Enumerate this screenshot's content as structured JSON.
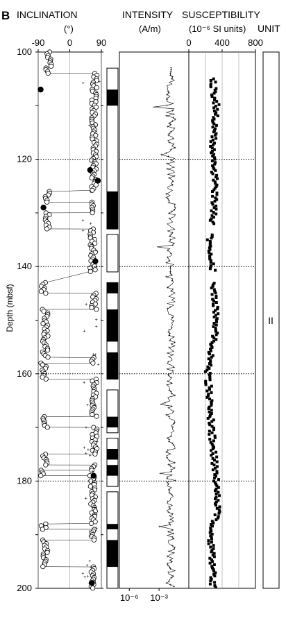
{
  "chart_data": {
    "type": "scatter",
    "panel_label": "B",
    "depth_axis": {
      "label": "Depth (mbsf)",
      "range": [
        100,
        200
      ],
      "ticks": [
        "100",
        "120",
        "140",
        "160",
        "180",
        "200"
      ],
      "dotted_lines": [
        120,
        140,
        160,
        180
      ]
    },
    "inclination": {
      "title": "INCLINATION",
      "unit": "(°)",
      "range": [
        -90,
        90
      ],
      "ticks": [
        "-90",
        "0",
        "90"
      ],
      "segments": [
        {
          "from": 100,
          "to": 104,
          "value": -60
        },
        {
          "from": 104,
          "to": 126,
          "value": 70
        },
        {
          "from": 126,
          "to": 128,
          "value": -65
        },
        {
          "from": 128,
          "to": 130,
          "value": 60
        },
        {
          "from": 130,
          "to": 133,
          "value": -65
        },
        {
          "from": 133,
          "to": 141,
          "value": 65
        },
        {
          "from": 143,
          "to": 145,
          "value": -75
        },
        {
          "from": 145,
          "to": 148,
          "value": 70
        },
        {
          "from": 148,
          "to": 157,
          "value": -70
        },
        {
          "from": 157,
          "to": 158,
          "value": 65
        },
        {
          "from": 158,
          "to": 161,
          "value": -75
        },
        {
          "from": 161,
          "to": 168,
          "value": 70
        },
        {
          "from": 168,
          "to": 170,
          "value": -70
        },
        {
          "from": 170,
          "to": 175,
          "value": 70
        },
        {
          "from": 175,
          "to": 177,
          "value": -70
        },
        {
          "from": 177,
          "to": 178,
          "value": 65
        },
        {
          "from": 178,
          "to": 179,
          "value": -75
        },
        {
          "from": 179,
          "to": 188,
          "value": 65
        },
        {
          "from": 188,
          "to": 189,
          "value": -75
        },
        {
          "from": 189,
          "to": 191,
          "value": 65
        },
        {
          "from": 191,
          "to": 196,
          "value": -70
        },
        {
          "from": 196,
          "to": 200,
          "value": 65
        }
      ],
      "filled_points": [
        [
          107,
          -83
        ],
        [
          122,
          58
        ],
        [
          124,
          80
        ],
        [
          129,
          -75
        ],
        [
          139,
          73
        ],
        [
          179,
          68
        ],
        [
          199,
          63
        ]
      ]
    },
    "polarity_column": {
      "intervals": [
        {
          "from": 103,
          "to": 133,
          "black": [
            [
              107,
              110
            ],
            [
              126,
              133
            ]
          ]
        },
        {
          "from": 134,
          "to": 141,
          "black": []
        },
        {
          "from": 143,
          "to": 161,
          "black": [
            [
              143,
              145
            ],
            [
              148,
              154
            ],
            [
              156,
              161
            ]
          ]
        },
        {
          "from": 163,
          "to": 171,
          "black": [
            [
              168,
              170
            ]
          ]
        },
        {
          "from": 172,
          "to": 181,
          "black": [
            [
              174,
              176
            ],
            [
              177,
              179
            ]
          ]
        },
        {
          "from": 182,
          "to": 200,
          "black": [
            [
              188,
              189
            ],
            [
              191,
              196
            ]
          ]
        }
      ]
    },
    "intensity": {
      "title": "INTENSITY",
      "unit": "(A/m)",
      "scale": "log",
      "range": [
        1e-07,
        1
      ],
      "ticks": [
        "10⁻⁶",
        "10⁻³"
      ],
      "typical_log10": -1.8
    },
    "susceptibility": {
      "title": "SUSCEPTIBILITY",
      "unit": "(10⁻⁶ SI units)",
      "range": [
        0,
        800
      ],
      "ticks": [
        "0",
        "400",
        "800"
      ],
      "profile": [
        [
          105,
          280
        ],
        [
          110,
          330
        ],
        [
          115,
          300
        ],
        [
          120,
          280
        ],
        [
          125,
          320
        ],
        [
          130,
          300
        ],
        [
          135,
          250
        ],
        [
          140,
          290
        ],
        [
          145,
          300
        ],
        [
          150,
          340
        ],
        [
          155,
          280
        ],
        [
          160,
          230
        ],
        [
          165,
          250
        ],
        [
          170,
          270
        ],
        [
          175,
          300
        ],
        [
          180,
          330
        ],
        [
          185,
          350
        ],
        [
          190,
          260
        ],
        [
          195,
          280
        ],
        [
          200,
          290
        ]
      ]
    },
    "unit": {
      "title": "UNIT",
      "label": "II"
    }
  }
}
